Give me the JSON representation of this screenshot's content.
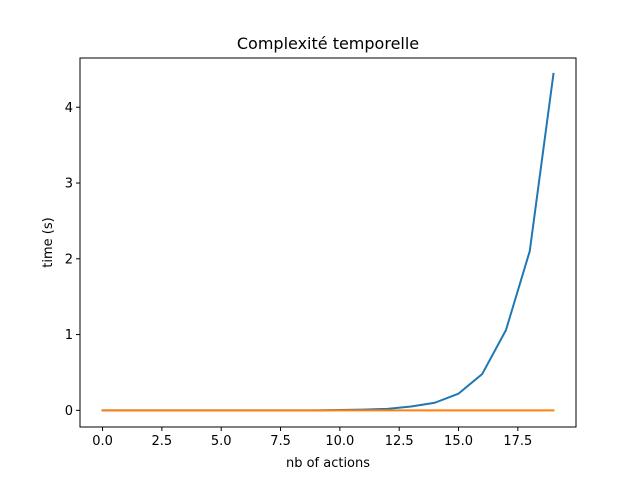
{
  "chart_data": {
    "type": "line",
    "title": "Complexité temporelle",
    "xlabel": "nb of actions",
    "ylabel": "time (s)",
    "xlim": [
      -0.95,
      19.95
    ],
    "ylim": [
      -0.22,
      4.65
    ],
    "grid": false,
    "legend": "none",
    "xticks": [
      0,
      2.5,
      5,
      7.5,
      10,
      12.5,
      15,
      17.5
    ],
    "xtick_labels": [
      "0.0",
      "2.5",
      "5.0",
      "7.5",
      "10.0",
      "12.5",
      "15.0",
      "17.5"
    ],
    "yticks": [
      0,
      1,
      2,
      3,
      4
    ],
    "ytick_labels": [
      "0",
      "1",
      "2",
      "3",
      "4"
    ],
    "x": [
      0,
      1,
      2,
      3,
      4,
      5,
      6,
      7,
      8,
      9,
      10,
      11,
      12,
      13,
      14,
      15,
      16,
      17,
      18,
      19
    ],
    "series": [
      {
        "color": "#1f77b4",
        "values": [
          0.0,
          0.0,
          0.0,
          0.0,
          0.0,
          0.0,
          0.0,
          0.0,
          0.0,
          0.0,
          0.005,
          0.01,
          0.02,
          0.05,
          0.1,
          0.22,
          0.48,
          1.06,
          2.1,
          4.44
        ]
      },
      {
        "color": "#ff7f0e",
        "values": [
          0.0,
          0.0,
          0.0,
          0.0,
          0.0,
          0.0,
          0.0,
          0.0,
          0.0,
          0.0,
          0.0,
          0.0,
          0.0,
          0.0,
          0.0,
          0.0,
          0.0,
          0.0,
          0.0,
          0.0
        ]
      }
    ]
  }
}
